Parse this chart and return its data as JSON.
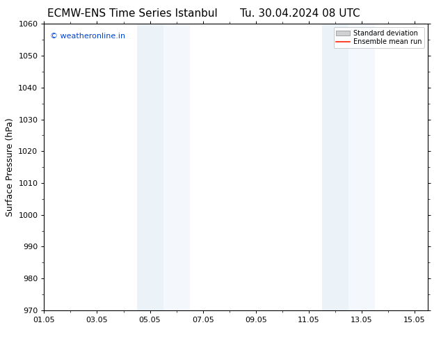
{
  "title_left": "ECMW-ENS Time Series Istanbul",
  "title_right": "Tu. 30.04.2024 08 UTC",
  "ylabel": "Surface Pressure (hPa)",
  "ylim": [
    970,
    1060
  ],
  "yticks": [
    970,
    980,
    990,
    1000,
    1010,
    1020,
    1030,
    1040,
    1050,
    1060
  ],
  "xlim_start": 0,
  "xlim_end": 14.5,
  "xtick_labels": [
    "01.05",
    "03.05",
    "05.05",
    "07.05",
    "09.05",
    "11.05",
    "13.05",
    "15.05"
  ],
  "xtick_positions": [
    0,
    2,
    4,
    6,
    8,
    10,
    12,
    14
  ],
  "shaded_regions": [
    {
      "x_start": 3.5,
      "x_end": 4.5,
      "alpha": 0.35
    },
    {
      "x_start": 4.5,
      "x_end": 5.5,
      "alpha": 0.2
    },
    {
      "x_start": 10.5,
      "x_end": 11.5,
      "alpha": 0.35
    },
    {
      "x_start": 11.5,
      "x_end": 12.5,
      "alpha": 0.2
    }
  ],
  "shaded_color": "#c8dff0",
  "background_color": "#ffffff",
  "plot_background": "#ffffff",
  "watermark_text": "© weatheronline.in",
  "watermark_color": "#0044cc",
  "legend_std_label": "Standard deviation",
  "legend_mean_label": "Ensemble mean run",
  "legend_std_color": "#d0d0d0",
  "legend_mean_color": "#ff2200",
  "title_fontsize": 11,
  "axis_fontsize": 9,
  "tick_fontsize": 8,
  "watermark_fontsize": 8,
  "grid_color": "#cccccc",
  "spine_color": "#000000"
}
